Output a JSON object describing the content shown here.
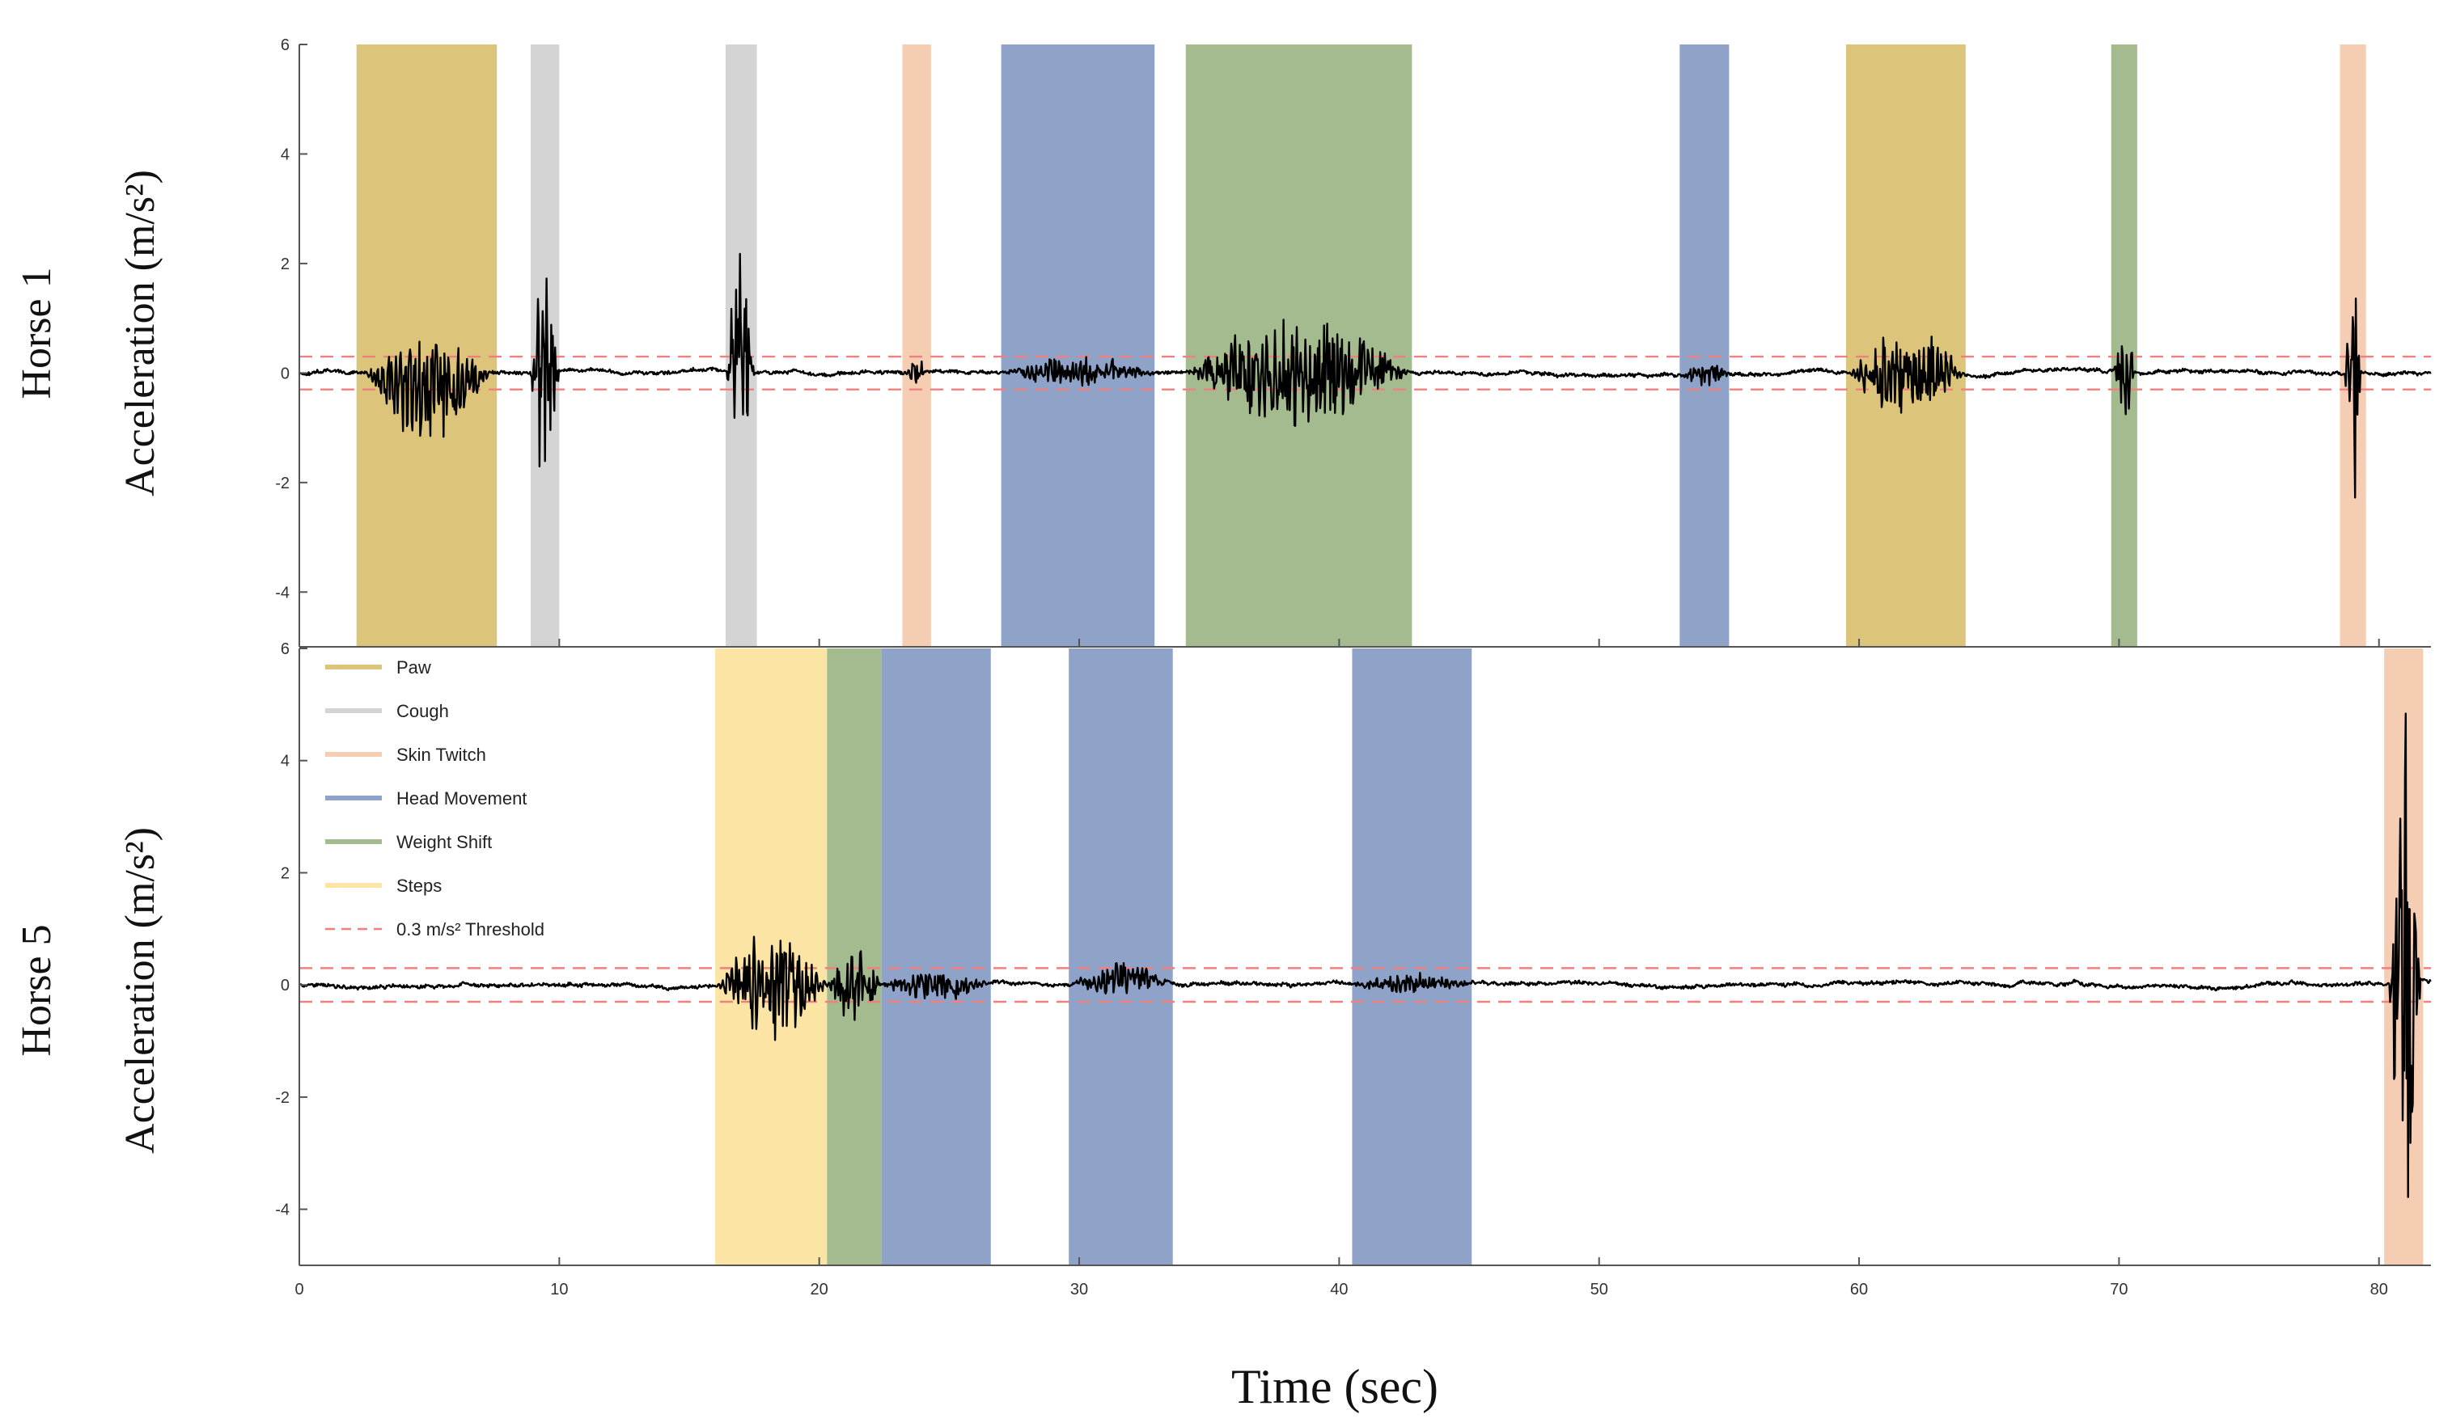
{
  "chart_data": {
    "type": "line",
    "xlabel": "Time (sec)",
    "xlim": [
      0,
      82
    ],
    "x_ticks": [
      0,
      10,
      20,
      30,
      40,
      50,
      60,
      70,
      80
    ],
    "ylim": [
      -5,
      6
    ],
    "y_ticks": [
      -4,
      -2,
      0,
      2,
      4,
      6
    ],
    "threshold": 0.3,
    "colors": {
      "Paw": "#dcc47a",
      "Cough": "#d4d4d4",
      "Skin Twitch": "#f5cdb2",
      "Head Movement": "#8fa2c7",
      "Weight Shift": "#a3bb8e",
      "Steps": "#fbe4a4",
      "Threshold": "#f08080",
      "Signal": "#000000"
    },
    "legend": {
      "items": [
        {
          "label": "Paw",
          "color": "#dcc47a",
          "style": "solid"
        },
        {
          "label": "Cough",
          "color": "#d4d4d4",
          "style": "solid"
        },
        {
          "label": "Skin Twitch",
          "color": "#f5cdb2",
          "style": "solid"
        },
        {
          "label": "Head Movement",
          "color": "#8fa2c7",
          "style": "solid"
        },
        {
          "label": "Weight Shift",
          "color": "#a3bb8e",
          "style": "solid"
        },
        {
          "label": "Steps",
          "color": "#fbe4a4",
          "style": "solid"
        },
        {
          "label": "0.3 m/s² Threshold",
          "color": "#f08080",
          "style": "dashed"
        }
      ]
    },
    "panels": [
      {
        "name": "Horse 1",
        "ylabel": "Acceleration (m/s²)",
        "behaviors": [
          {
            "label": "Paw",
            "start": 2.2,
            "end": 7.6
          },
          {
            "label": "Cough",
            "start": 8.9,
            "end": 10.0
          },
          {
            "label": "Cough",
            "start": 16.4,
            "end": 17.6
          },
          {
            "label": "Skin Twitch",
            "start": 23.2,
            "end": 24.3
          },
          {
            "label": "Head Movement",
            "start": 27.0,
            "end": 32.9
          },
          {
            "label": "Weight Shift",
            "start": 34.1,
            "end": 42.8
          },
          {
            "label": "Head Movement",
            "start": 53.1,
            "end": 55.0
          },
          {
            "label": "Paw",
            "start": 59.5,
            "end": 64.1
          },
          {
            "label": "Weight Shift",
            "start": 69.7,
            "end": 70.7
          },
          {
            "label": "Skin Twitch",
            "start": 78.5,
            "end": 79.5
          }
        ],
        "events": [
          {
            "t0": 2.5,
            "t1": 7.3,
            "amp": 0.9,
            "offset": -0.35
          },
          {
            "t0": 8.9,
            "t1": 10.0,
            "amp": 1.9,
            "offset": 0.0
          },
          {
            "t0": 16.4,
            "t1": 17.5,
            "amp": 1.9,
            "offset": 0.0
          },
          {
            "t0": 23.4,
            "t1": 24.1,
            "amp": 0.3,
            "offset": 0.0
          },
          {
            "t0": 27.2,
            "t1": 32.8,
            "amp": 0.25,
            "offset": 0.0
          },
          {
            "t0": 34.2,
            "t1": 42.7,
            "amp": 0.9,
            "offset": 0.0
          },
          {
            "t0": 53.2,
            "t1": 55.0,
            "amp": 0.2,
            "offset": 0.0
          },
          {
            "t0": 59.6,
            "t1": 64.0,
            "amp": 0.85,
            "offset": 0.0
          },
          {
            "t0": 69.8,
            "t1": 70.6,
            "amp": 0.8,
            "offset": 0.0
          },
          {
            "t0": 78.7,
            "t1": 79.3,
            "amp": 2.6,
            "offset": 0.0
          }
        ]
      },
      {
        "name": "Horse 5",
        "ylabel": "Acceleration (m/s²)",
        "behaviors": [
          {
            "label": "Steps",
            "start": 16.0,
            "end": 20.3
          },
          {
            "label": "Weight Shift",
            "start": 20.3,
            "end": 22.4
          },
          {
            "label": "Head Movement",
            "start": 22.4,
            "end": 26.6
          },
          {
            "label": "Head Movement",
            "start": 29.6,
            "end": 33.6
          },
          {
            "label": "Head Movement",
            "start": 40.5,
            "end": 45.1
          },
          {
            "label": "Skin Twitch",
            "start": 80.2,
            "end": 81.7
          }
        ],
        "events": [
          {
            "t0": 16.1,
            "t1": 20.3,
            "amp": 0.9,
            "offset": 0.0
          },
          {
            "t0": 20.3,
            "t1": 22.4,
            "amp": 0.6,
            "offset": 0.0
          },
          {
            "t0": 22.4,
            "t1": 26.5,
            "amp": 0.25,
            "offset": 0.0
          },
          {
            "t0": 29.7,
            "t1": 33.5,
            "amp": 0.25,
            "offset": 0.1
          },
          {
            "t0": 40.6,
            "t1": 45.0,
            "amp": 0.15,
            "offset": 0.0
          },
          {
            "t0": 80.4,
            "t1": 81.6,
            "amp": 4.6,
            "offset": 0.0
          }
        ]
      }
    ]
  }
}
